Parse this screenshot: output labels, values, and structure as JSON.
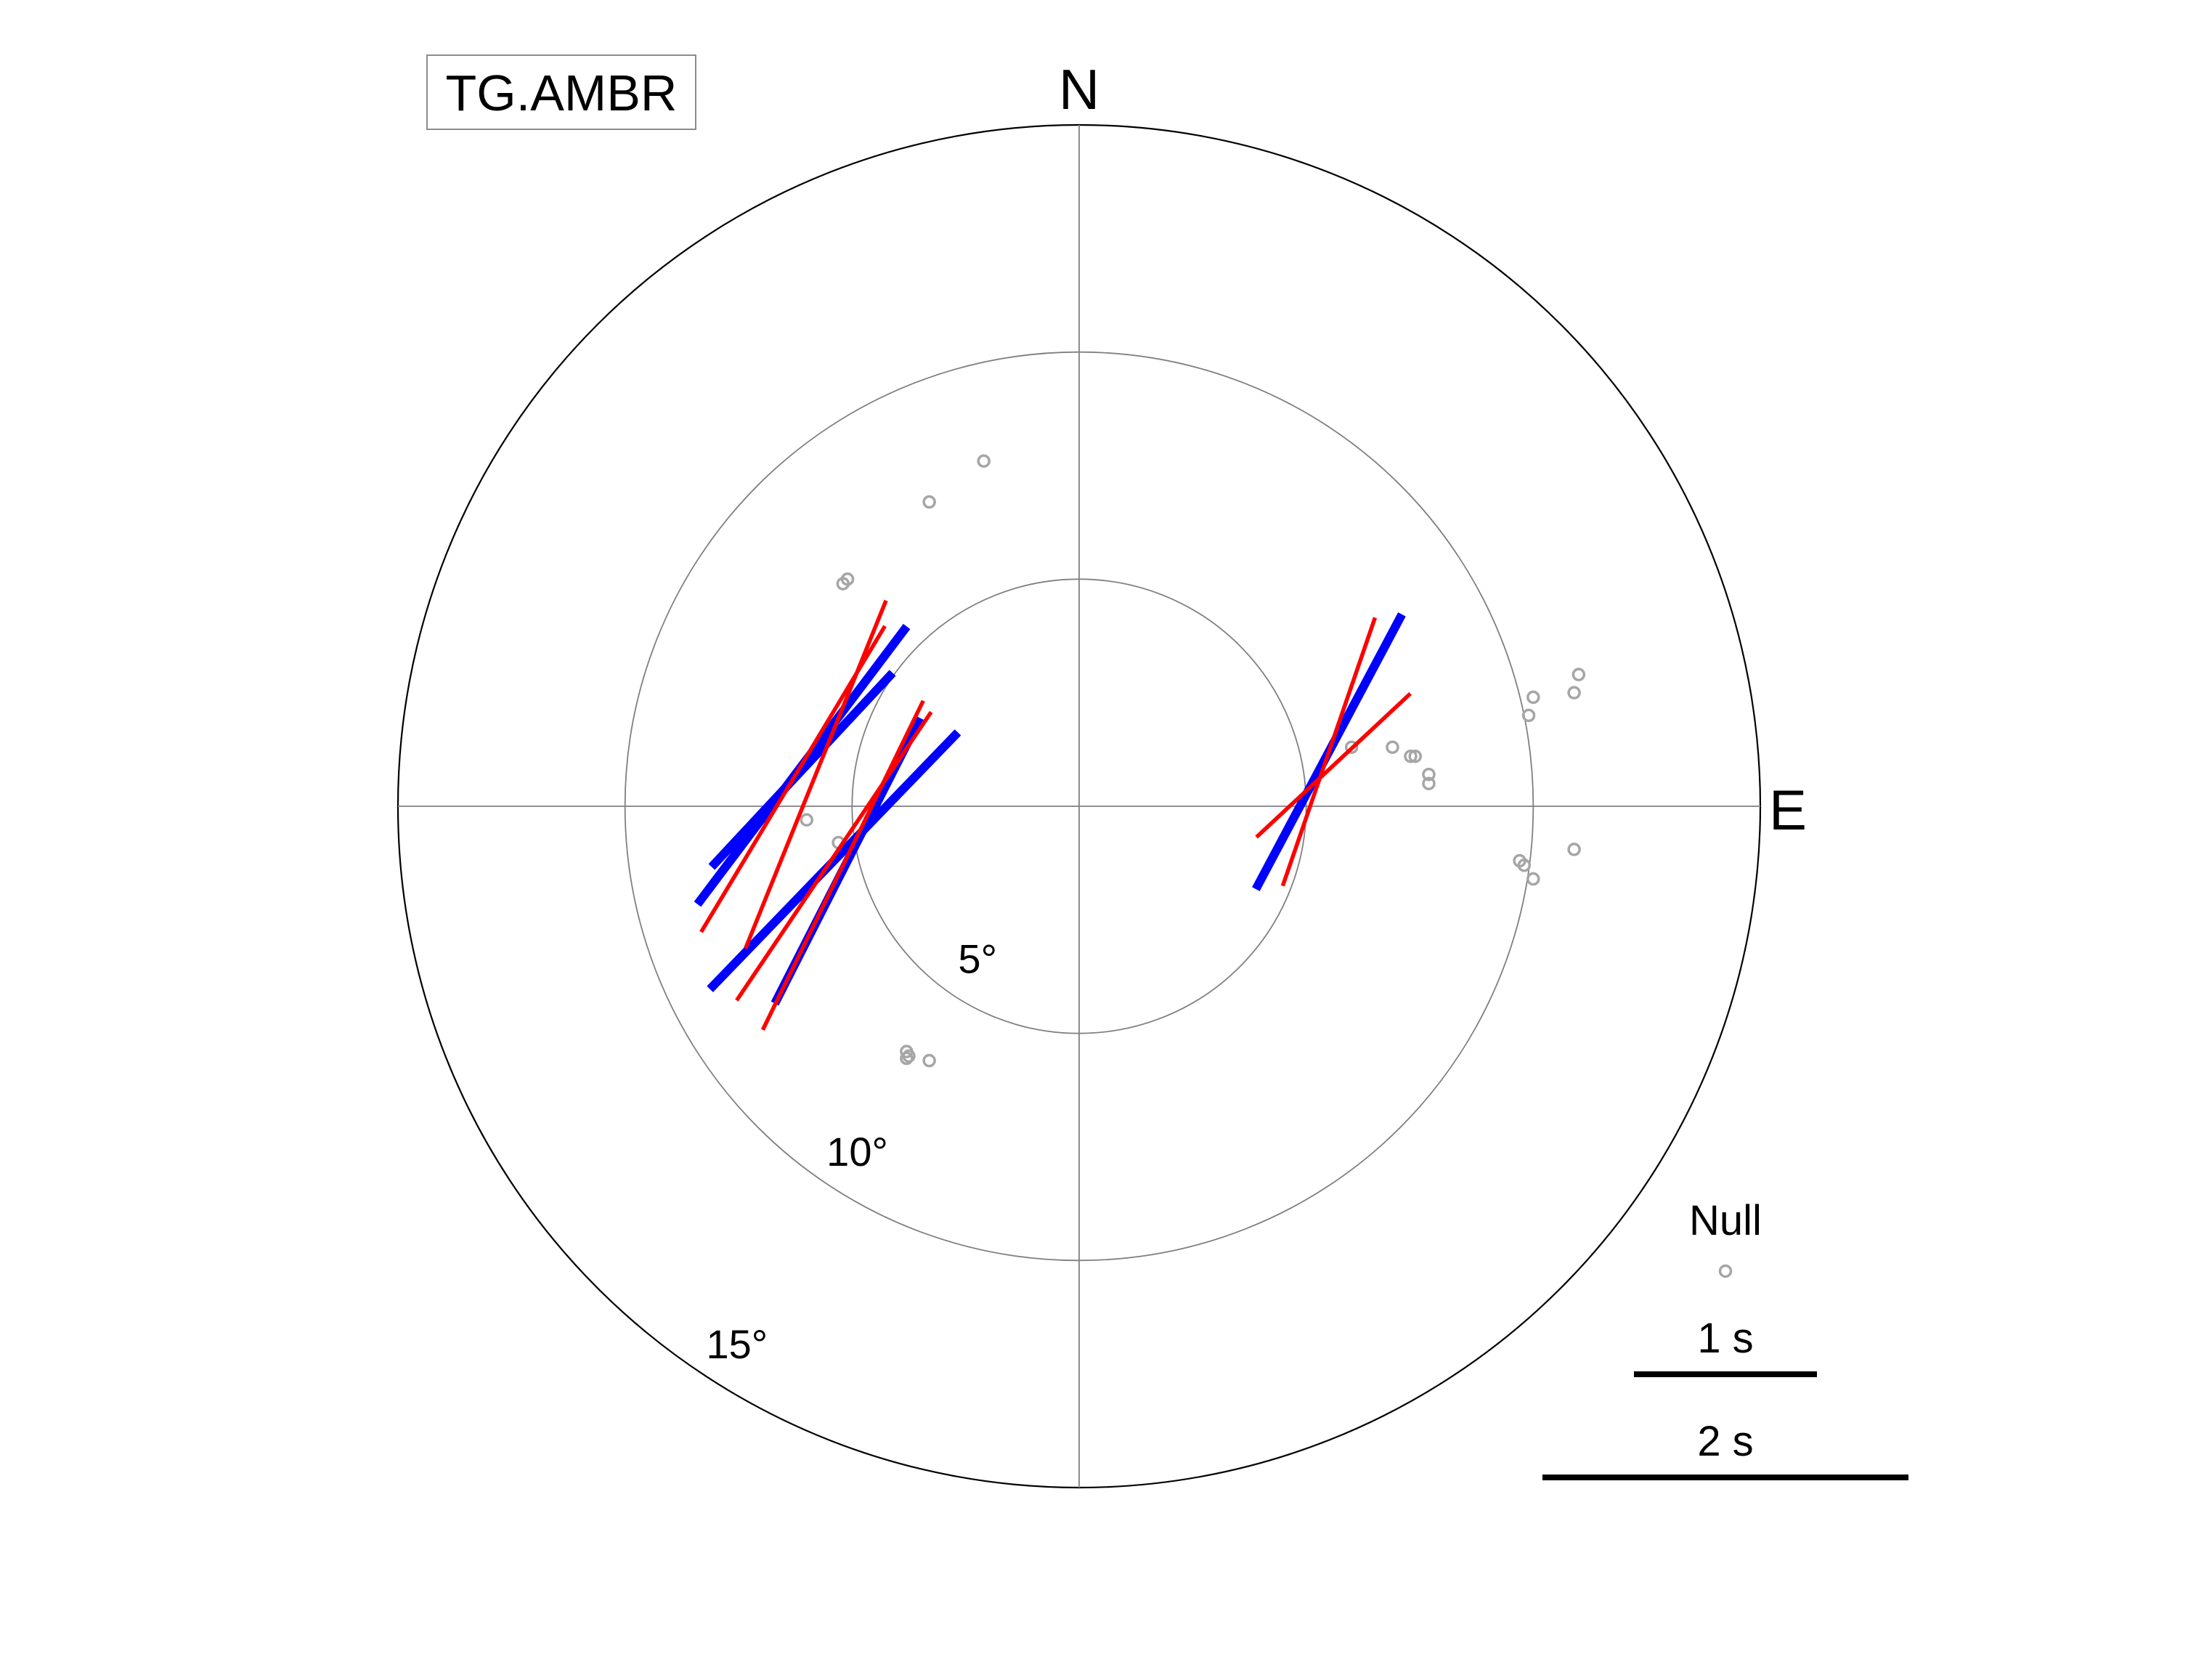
{
  "chart_data": {
    "type": "scatter",
    "title": "",
    "station_label": "TG.AMBR",
    "projection": "polar",
    "compass_labels": {
      "north": "N",
      "east": "E"
    },
    "radial_unit": "degrees",
    "radial_max": 15,
    "ring_values": [
      5,
      10,
      15
    ],
    "ring_labels": [
      "5°",
      "10°",
      "15°"
    ],
    "grid": true,
    "colors": {
      "null_marker": "#a6a6a6",
      "split_blue": "#0000ff",
      "split_red": "#ff0000",
      "grid": "#808080",
      "outline": "#000000"
    },
    "legend": {
      "placement": "bottom-right",
      "null_label": "Null",
      "scale_bars": [
        {
          "label": "1 s",
          "seconds": 1
        },
        {
          "label": "2 s",
          "seconds": 2
        }
      ]
    },
    "null_points": [
      {
        "east": -2.1,
        "north": 7.6
      },
      {
        "east": -3.3,
        "north": 6.7
      },
      {
        "east": -5.1,
        "north": 5.0
      },
      {
        "east": -5.2,
        "north": 4.9
      },
      {
        "east": -6.0,
        "north": -0.3
      },
      {
        "east": -5.3,
        "north": -0.8
      },
      {
        "east": -3.8,
        "north": -5.4
      },
      {
        "east": -3.75,
        "north": -5.5
      },
      {
        "east": -3.8,
        "north": -5.55
      },
      {
        "east": -3.3,
        "north": -5.6
      },
      {
        "east": 6.0,
        "north": 1.3
      },
      {
        "east": 6.9,
        "north": 1.3
      },
      {
        "east": 7.4,
        "north": 1.1
      },
      {
        "east": 7.3,
        "north": 1.1
      },
      {
        "east": 7.7,
        "north": 0.7
      },
      {
        "east": 7.7,
        "north": 0.5
      },
      {
        "east": 10.0,
        "north": 2.4
      },
      {
        "east": 9.9,
        "north": 2.0
      },
      {
        "east": 10.9,
        "north": 2.5
      },
      {
        "east": 11.0,
        "north": 2.9
      },
      {
        "east": 9.7,
        "north": -1.2
      },
      {
        "east": 9.8,
        "north": -1.3
      },
      {
        "east": 10.0,
        "north": -1.6
      },
      {
        "east": 10.9,
        "north": -0.95
      }
    ],
    "blue_splits": [
      {
        "east": -6.1,
        "north": 0.8,
        "azimuth": 43,
        "delay_s": 1.45
      },
      {
        "east": -5.4,
        "north": -1.2,
        "azimuth": 44,
        "delay_s": 1.95
      },
      {
        "east": -5.1,
        "north": -1.2,
        "azimuth": 27,
        "delay_s": 1.75
      },
      {
        "east": -6.1,
        "north": 0.9,
        "azimuth": 37,
        "delay_s": 1.9
      },
      {
        "east": 5.5,
        "north": 1.2,
        "azimuth": 28,
        "delay_s": 1.7
      }
    ],
    "red_splits": [
      {
        "east": -6.3,
        "north": 0.6,
        "azimuth": 31,
        "delay_s": 1.95
      },
      {
        "east": -5.8,
        "north": 0.7,
        "azimuth": 22,
        "delay_s": 2.05
      },
      {
        "east": -5.2,
        "north": -1.3,
        "azimuth": 26,
        "delay_s": 2.0
      },
      {
        "east": -5.4,
        "north": -1.1,
        "azimuth": 34,
        "delay_s": 1.9
      },
      {
        "east": 5.6,
        "north": 0.9,
        "azimuth": 47,
        "delay_s": 1.15
      },
      {
        "east": 5.5,
        "north": 1.2,
        "azimuth": 19,
        "delay_s": 1.55
      }
    ]
  }
}
